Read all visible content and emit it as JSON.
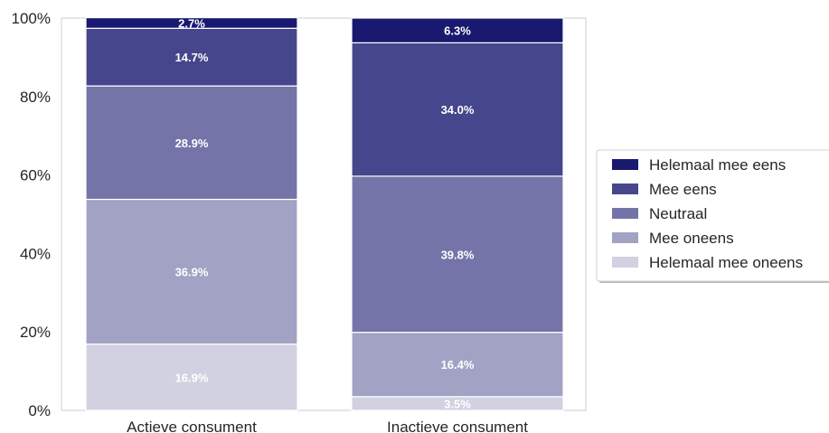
{
  "chart_data": {
    "type": "bar",
    "stacked": true,
    "normalized": true,
    "categories": [
      "Actieve consument",
      "Inactieve consument"
    ],
    "series": [
      {
        "name": "Helemaal mee oneens",
        "values": [
          16.9,
          3.5
        ],
        "labels": [
          "16.9%",
          "3.5%"
        ]
      },
      {
        "name": "Mee oneens",
        "values": [
          36.9,
          16.4
        ],
        "labels": [
          "36.9%",
          "16.4%"
        ]
      },
      {
        "name": "Neutraal",
        "values": [
          28.9,
          39.8
        ],
        "labels": [
          "28.9%",
          "39.8%"
        ]
      },
      {
        "name": "Mee eens",
        "values": [
          14.7,
          34.0
        ],
        "labels": [
          "14.7%",
          "34.0%"
        ]
      },
      {
        "name": "Helemaal mee eens",
        "values": [
          2.7,
          6.3
        ],
        "labels": [
          "2.7%",
          "6.3%"
        ]
      }
    ],
    "colors": {
      "Helemaal mee eens": "#191970",
      "Mee eens": "#46468c",
      "Neutraal": "#7474a8",
      "Mee oneens": "#a2a2c5",
      "Helemaal mee oneens": "#d1d1e2"
    },
    "legend_order": [
      "Helemaal mee eens",
      "Mee eens",
      "Neutraal",
      "Mee oneens",
      "Helemaal mee oneens"
    ],
    "yticks": [
      "0%",
      "20%",
      "40%",
      "60%",
      "80%",
      "100%"
    ],
    "ylim": [
      0,
      100
    ],
    "xlabel": "",
    "ylabel": "",
    "title": "",
    "grid": false,
    "legend_position": "right"
  }
}
